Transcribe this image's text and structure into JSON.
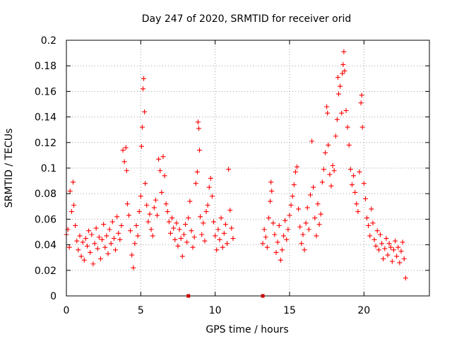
{
  "chart_data": {
    "type": "scatter",
    "title": "Day 247 of 2020, SRMTID for receiver orid",
    "xlabel": "GPS time / hours",
    "ylabel": "SRMTID / TECUs",
    "xlim": [
      0,
      24.4
    ],
    "ylim": [
      0,
      0.2
    ],
    "x_ticks": [
      0,
      5,
      10,
      15,
      20
    ],
    "x_tick_labels": [
      "0",
      "5",
      "10",
      "15",
      "20"
    ],
    "y_ticks": [
      0,
      0.02,
      0.04,
      0.06,
      0.08,
      0.1,
      0.12,
      0.14,
      0.16,
      0.18,
      0.2
    ],
    "y_tick_labels": [
      "0",
      "0.02",
      "0.04",
      "0.06",
      "0.08",
      "0.1",
      "0.12",
      "0.14",
      "0.16",
      "0.18",
      "0.2"
    ],
    "grid": true,
    "marker": "+",
    "series": [
      {
        "name": "SRMTID",
        "color": "#ff0000",
        "points": [
          [
            0.0,
            0.048
          ],
          [
            0.1,
            0.052
          ],
          [
            0.2,
            0.038
          ],
          [
            0.25,
            0.082
          ],
          [
            0.35,
            0.066
          ],
          [
            0.45,
            0.089
          ],
          [
            0.5,
            0.071
          ],
          [
            0.6,
            0.055
          ],
          [
            0.7,
            0.043
          ],
          [
            0.8,
            0.036
          ],
          [
            0.9,
            0.047
          ],
          [
            1.0,
            0.031
          ],
          [
            1.1,
            0.042
          ],
          [
            1.2,
            0.028
          ],
          [
            1.3,
            0.045
          ],
          [
            1.4,
            0.039
          ],
          [
            1.5,
            0.051
          ],
          [
            1.6,
            0.034
          ],
          [
            1.7,
            0.048
          ],
          [
            1.8,
            0.025
          ],
          [
            1.9,
            0.041
          ],
          [
            2.0,
            0.053
          ],
          [
            2.1,
            0.037
          ],
          [
            2.2,
            0.046
          ],
          [
            2.3,
            0.029
          ],
          [
            2.4,
            0.044
          ],
          [
            2.5,
            0.056
          ],
          [
            2.6,
            0.038
          ],
          [
            2.7,
            0.047
          ],
          [
            2.8,
            0.033
          ],
          [
            2.9,
            0.052
          ],
          [
            3.0,
            0.041
          ],
          [
            3.1,
            0.058
          ],
          [
            3.2,
            0.045
          ],
          [
            3.3,
            0.036
          ],
          [
            3.4,
            0.062
          ],
          [
            3.5,
            0.049
          ],
          [
            3.6,
            0.044
          ],
          [
            3.7,
            0.055
          ],
          [
            3.8,
            0.114
          ],
          [
            3.9,
            0.105
          ],
          [
            4.0,
            0.116
          ],
          [
            4.05,
            0.098
          ],
          [
            4.1,
            0.072
          ],
          [
            4.2,
            0.063
          ],
          [
            4.3,
            0.051
          ],
          [
            4.4,
            0.032
          ],
          [
            4.5,
            0.022
          ],
          [
            4.6,
            0.041
          ],
          [
            4.7,
            0.055
          ],
          [
            4.8,
            0.047
          ],
          [
            4.9,
            0.066
          ],
          [
            5.0,
            0.078
          ],
          [
            5.05,
            0.117
          ],
          [
            5.1,
            0.132
          ],
          [
            5.15,
            0.162
          ],
          [
            5.2,
            0.17
          ],
          [
            5.25,
            0.144
          ],
          [
            5.3,
            0.088
          ],
          [
            5.4,
            0.071
          ],
          [
            5.5,
            0.058
          ],
          [
            5.6,
            0.064
          ],
          [
            5.7,
            0.052
          ],
          [
            5.8,
            0.047
          ],
          [
            5.9,
            0.069
          ],
          [
            6.0,
            0.075
          ],
          [
            6.1,
            0.063
          ],
          [
            6.2,
            0.107
          ],
          [
            6.3,
            0.098
          ],
          [
            6.4,
            0.081
          ],
          [
            6.5,
            0.109
          ],
          [
            6.6,
            0.094
          ],
          [
            6.7,
            0.072
          ],
          [
            6.8,
            0.066
          ],
          [
            6.9,
            0.058
          ],
          [
            7.0,
            0.049
          ],
          [
            7.1,
            0.061
          ],
          [
            7.2,
            0.053
          ],
          [
            7.3,
            0.044
          ],
          [
            7.4,
            0.057
          ],
          [
            7.5,
            0.039
          ],
          [
            7.6,
            0.052
          ],
          [
            7.7,
            0.045
          ],
          [
            7.8,
            0.031
          ],
          [
            7.9,
            0.048
          ],
          [
            8.0,
            0.056
          ],
          [
            8.1,
            0.042
          ],
          [
            8.2,
            0.061
          ],
          [
            8.3,
            0.074
          ],
          [
            8.4,
            0.051
          ],
          [
            8.5,
            0.038
          ],
          [
            8.6,
            0.046
          ],
          [
            8.7,
            0.088
          ],
          [
            8.8,
            0.097
          ],
          [
            8.85,
            0.136
          ],
          [
            8.9,
            0.131
          ],
          [
            8.95,
            0.114
          ],
          [
            9.0,
            0.062
          ],
          [
            9.1,
            0.048
          ],
          [
            9.2,
            0.057
          ],
          [
            9.3,
            0.043
          ],
          [
            9.4,
            0.066
          ],
          [
            9.5,
            0.071
          ],
          [
            9.6,
            0.085
          ],
          [
            9.7,
            0.092
          ],
          [
            9.8,
            0.078
          ],
          [
            9.9,
            0.058
          ],
          [
            10.0,
            0.047
          ],
          [
            10.1,
            0.036
          ],
          [
            10.2,
            0.052
          ],
          [
            10.3,
            0.044
          ],
          [
            10.4,
            0.061
          ],
          [
            10.5,
            0.038
          ],
          [
            10.6,
            0.049
          ],
          [
            10.7,
            0.056
          ],
          [
            10.8,
            0.041
          ],
          [
            10.9,
            0.099
          ],
          [
            11.0,
            0.067
          ],
          [
            11.1,
            0.053
          ],
          [
            11.2,
            0.045
          ],
          [
            13.2,
            0.041
          ],
          [
            13.3,
            0.052
          ],
          [
            13.4,
            0.046
          ],
          [
            13.5,
            0.038
          ],
          [
            13.6,
            0.061
          ],
          [
            13.7,
            0.074
          ],
          [
            13.75,
            0.089
          ],
          [
            13.8,
            0.082
          ],
          [
            13.9,
            0.057
          ],
          [
            14.0,
            0.048
          ],
          [
            14.1,
            0.034
          ],
          [
            14.2,
            0.042
          ],
          [
            14.3,
            0.055
          ],
          [
            14.4,
            0.028
          ],
          [
            14.5,
            0.036
          ],
          [
            14.6,
            0.047
          ],
          [
            14.7,
            0.059
          ],
          [
            14.8,
            0.044
          ],
          [
            14.9,
            0.052
          ],
          [
            15.0,
            0.063
          ],
          [
            15.1,
            0.071
          ],
          [
            15.2,
            0.078
          ],
          [
            15.3,
            0.087
          ],
          [
            15.4,
            0.097
          ],
          [
            15.5,
            0.101
          ],
          [
            15.6,
            0.068
          ],
          [
            15.7,
            0.054
          ],
          [
            15.8,
            0.041
          ],
          [
            15.9,
            0.048
          ],
          [
            16.0,
            0.036
          ],
          [
            16.1,
            0.057
          ],
          [
            16.2,
            0.069
          ],
          [
            16.3,
            0.052
          ],
          [
            16.4,
            0.079
          ],
          [
            16.5,
            0.121
          ],
          [
            16.6,
            0.085
          ],
          [
            16.7,
            0.061
          ],
          [
            16.8,
            0.047
          ],
          [
            16.9,
            0.072
          ],
          [
            17.0,
            0.056
          ],
          [
            17.1,
            0.064
          ],
          [
            17.2,
            0.089
          ],
          [
            17.3,
            0.099
          ],
          [
            17.4,
            0.112
          ],
          [
            17.5,
            0.148
          ],
          [
            17.55,
            0.143
          ],
          [
            17.6,
            0.118
          ],
          [
            17.7,
            0.095
          ],
          [
            17.8,
            0.086
          ],
          [
            17.9,
            0.102
          ],
          [
            18.0,
            0.098
          ],
          [
            18.1,
            0.125
          ],
          [
            18.2,
            0.138
          ],
          [
            18.25,
            0.171
          ],
          [
            18.3,
            0.158
          ],
          [
            18.4,
            0.164
          ],
          [
            18.5,
            0.143
          ],
          [
            18.55,
            0.174
          ],
          [
            18.6,
            0.181
          ],
          [
            18.65,
            0.191
          ],
          [
            18.7,
            0.176
          ],
          [
            18.8,
            0.145
          ],
          [
            18.9,
            0.132
          ],
          [
            19.0,
            0.118
          ],
          [
            19.1,
            0.099
          ],
          [
            19.2,
            0.087
          ],
          [
            19.3,
            0.094
          ],
          [
            19.4,
            0.081
          ],
          [
            19.5,
            0.072
          ],
          [
            19.6,
            0.066
          ],
          [
            19.7,
            0.097
          ],
          [
            19.8,
            0.151
          ],
          [
            19.85,
            0.157
          ],
          [
            19.9,
            0.132
          ],
          [
            20.0,
            0.088
          ],
          [
            20.1,
            0.076
          ],
          [
            20.2,
            0.061
          ],
          [
            20.3,
            0.055
          ],
          [
            20.4,
            0.047
          ],
          [
            20.5,
            0.068
          ],
          [
            20.6,
            0.057
          ],
          [
            20.7,
            0.044
          ],
          [
            20.8,
            0.039
          ],
          [
            20.9,
            0.051
          ],
          [
            21.0,
            0.036
          ],
          [
            21.1,
            0.048
          ],
          [
            21.2,
            0.041
          ],
          [
            21.3,
            0.029
          ],
          [
            21.4,
            0.037
          ],
          [
            21.5,
            0.045
          ],
          [
            21.6,
            0.032
          ],
          [
            21.7,
            0.041
          ],
          [
            21.8,
            0.038
          ],
          [
            21.9,
            0.027
          ],
          [
            22.0,
            0.036
          ],
          [
            22.1,
            0.043
          ],
          [
            22.2,
            0.031
          ],
          [
            22.3,
            0.038
          ],
          [
            22.4,
            0.026
          ],
          [
            22.5,
            0.035
          ],
          [
            22.6,
            0.042
          ],
          [
            22.7,
            0.029
          ],
          [
            22.8,
            0.014
          ]
        ]
      }
    ],
    "axis_markers_x": [
      8.2,
      13.2
    ]
  }
}
